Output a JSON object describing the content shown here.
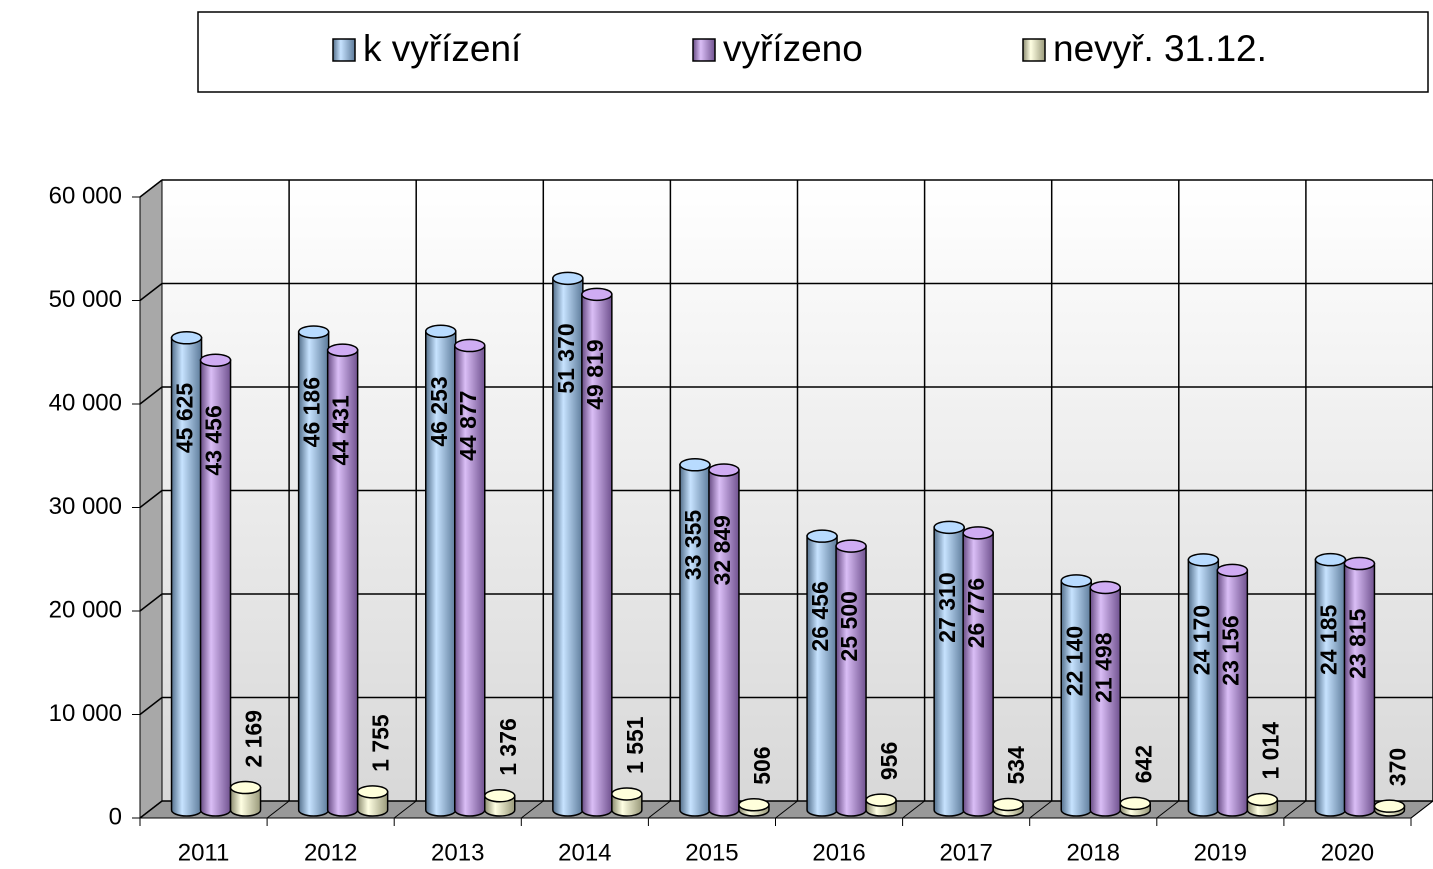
{
  "chart_data": {
    "type": "bar",
    "categories": [
      "2011",
      "2012",
      "2013",
      "2014",
      "2015",
      "2016",
      "2017",
      "2018",
      "2019",
      "2020"
    ],
    "series": [
      {
        "name": "k vyřízení",
        "color": "#99ccff",
        "values": [
          45625,
          46186,
          46253,
          51370,
          33355,
          26456,
          27310,
          22140,
          24170,
          24185
        ],
        "value_labels": [
          "45 625",
          "46 186",
          "46 253",
          "51 370",
          "33 355",
          "26 456",
          "27 310",
          "22 140",
          "24 170",
          "24 185"
        ]
      },
      {
        "name": "vyřízeno",
        "color": "#bb88ee",
        "values": [
          43456,
          44431,
          44877,
          49819,
          32849,
          25500,
          26776,
          21498,
          23156,
          23815
        ],
        "value_labels": [
          "43 456",
          "44 431",
          "44 877",
          "49 819",
          "32 849",
          "25 500",
          "26 776",
          "21 498",
          "23 156",
          "23 815"
        ]
      },
      {
        "name": "nevyř. 31.12.",
        "color": "#ffffcc",
        "values": [
          2169,
          1755,
          1376,
          1551,
          506,
          956,
          534,
          642,
          1014,
          370
        ],
        "value_labels": [
          "2 169",
          "1 755",
          "1 376",
          "1 551",
          "506",
          "956",
          "534",
          "642",
          "1 014",
          "370"
        ]
      }
    ],
    "ylim": [
      0,
      60000
    ],
    "yticks": [
      0,
      {
        "value": 10000,
        "label": "10 000"
      },
      {
        "value": 20000,
        "label": "20 000"
      },
      {
        "value": 30000,
        "label": "30 000"
      },
      {
        "value": 40000,
        "label": "40 000"
      },
      {
        "value": 50000,
        "label": "50 000"
      },
      {
        "value": 60000,
        "label": "60 000"
      }
    ],
    "grid": true,
    "legend": "top"
  }
}
